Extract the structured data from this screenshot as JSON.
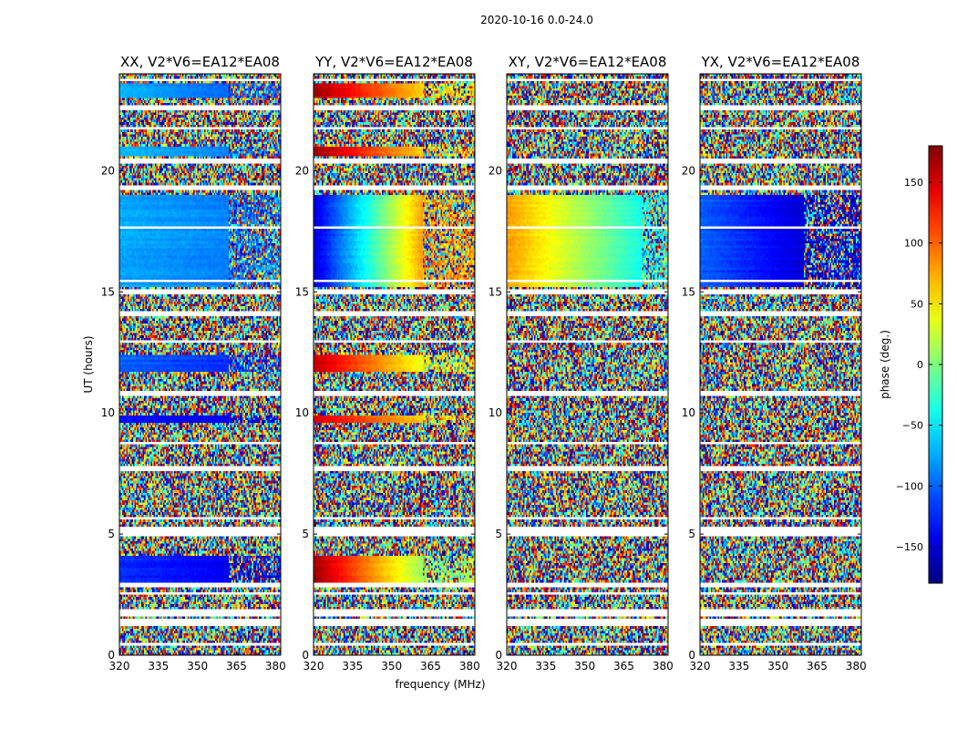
{
  "figure_title": "2020-10-16 0.0-24.0",
  "chart_data": {
    "type": "heatmap",
    "suptitle": "2020-10-16 0.0-24.0",
    "xlabel": "frequency (MHz)",
    "ylabel": "UT (hours)",
    "xlim": [
      320,
      382
    ],
    "ylim": [
      0,
      24
    ],
    "xticks": [
      320,
      335,
      350,
      365,
      380
    ],
    "yticks": [
      0,
      5,
      10,
      15,
      20
    ],
    "colorbar": {
      "label": "phase (deg.)",
      "range": [
        -180,
        180
      ],
      "ticks": [
        150,
        100,
        50,
        0,
        -50,
        -100,
        -150
      ],
      "colormap": "jet"
    },
    "panels": [
      {
        "title": "XX, V2*V6=EA12*EA08",
        "polarization": "XX",
        "coherent_bands": [
          {
            "t0": 15.2,
            "t1": 19.0,
            "f_break": 362,
            "phase_low": -75,
            "phase_high": -90
          },
          {
            "t0": 11.7,
            "t1": 12.4,
            "f_break": 362,
            "phase_low": -100,
            "phase_high": -120
          },
          {
            "t0": 9.6,
            "t1": 9.9,
            "f_break": 362,
            "phase_low": -130,
            "phase_high": -140
          },
          {
            "t0": 3.0,
            "t1": 4.1,
            "f_break": 362,
            "phase_low": -120,
            "phase_high": -140
          },
          {
            "t0": 20.6,
            "t1": 21.0,
            "f_break": 362,
            "phase_low": -70,
            "phase_high": -90
          },
          {
            "t0": 23.0,
            "t1": 23.6,
            "f_break": 362,
            "phase_low": -70,
            "phase_high": -100
          }
        ]
      },
      {
        "title": "YY, V2*V6=EA12*EA08",
        "polarization": "YY",
        "coherent_bands": [
          {
            "t0": 15.2,
            "t1": 19.0,
            "f_break": 362,
            "phase_low": -150,
            "phase_high": 80
          },
          {
            "t0": 11.7,
            "t1": 12.4,
            "f_break": 362,
            "phase_low": 160,
            "phase_high": 40
          },
          {
            "t0": 9.6,
            "t1": 9.9,
            "f_break": 362,
            "phase_low": 150,
            "phase_high": 60
          },
          {
            "t0": 3.0,
            "t1": 4.1,
            "f_break": 362,
            "phase_low": 170,
            "phase_high": 10
          },
          {
            "t0": 20.6,
            "t1": 21.0,
            "f_break": 362,
            "phase_low": 170,
            "phase_high": 60
          },
          {
            "t0": 23.0,
            "t1": 23.6,
            "f_break": 362,
            "phase_low": 170,
            "phase_high": 60
          }
        ]
      },
      {
        "title": "XY, V2*V6=EA12*EA08",
        "polarization": "XY",
        "coherent_bands": [
          {
            "t0": 15.2,
            "t1": 19.0,
            "f_break": 372,
            "phase_low": 80,
            "phase_high": -40
          }
        ]
      },
      {
        "title": "YX, V2*V6=EA12*EA08",
        "polarization": "YX",
        "coherent_bands": [
          {
            "t0": 15.2,
            "t1": 19.0,
            "f_break": 360,
            "phase_low": -100,
            "phase_high": -150
          }
        ]
      }
    ],
    "flagged_time_ranges": [
      [
        0.4,
        0.5
      ],
      [
        1.2,
        1.45
      ],
      [
        1.6,
        1.85
      ],
      [
        2.5,
        2.6
      ],
      [
        2.85,
        2.95
      ],
      [
        4.95,
        5.35
      ],
      [
        5.6,
        5.7
      ],
      [
        7.6,
        7.75
      ],
      [
        8.75,
        8.85
      ],
      [
        9.35,
        9.45
      ],
      [
        10.7,
        10.85
      ],
      [
        12.9,
        13.0
      ],
      [
        14.0,
        14.15
      ],
      [
        14.95,
        15.05
      ],
      [
        15.4,
        15.5
      ],
      [
        17.6,
        17.7
      ],
      [
        19.2,
        19.35
      ],
      [
        20.35,
        20.5
      ],
      [
        21.7,
        21.8
      ],
      [
        22.5,
        22.65
      ],
      [
        23.7,
        23.8
      ]
    ]
  }
}
